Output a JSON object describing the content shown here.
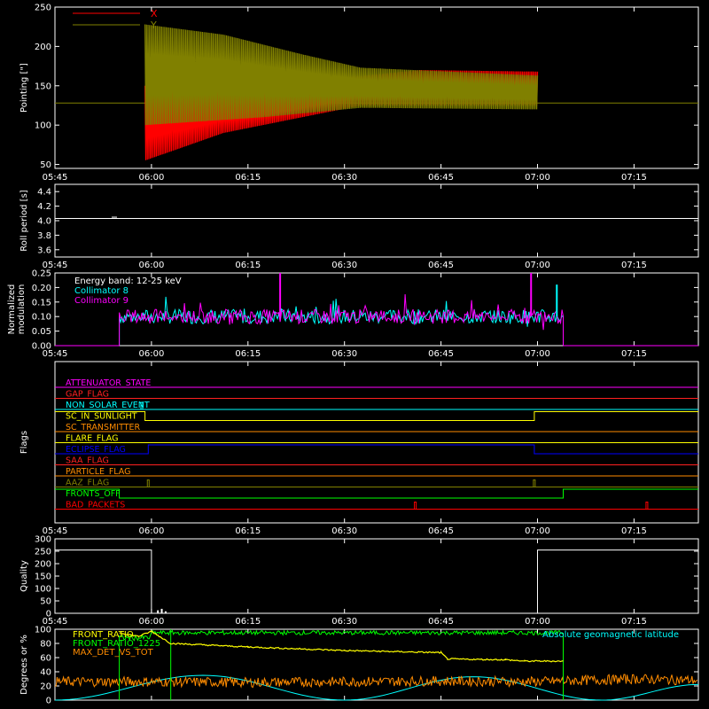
{
  "time_ticks": [
    "05:45",
    "06:00",
    "06:15",
    "06:30",
    "06:45",
    "07:00",
    "07:15"
  ],
  "colors": {
    "background": "#000000",
    "axes": "#ffffff",
    "x_pointing": "#ff0000",
    "y_pointing": "#808000",
    "collimator8": "#00ffff",
    "collimator9": "#ff00ff",
    "front_ratio": "#ffff00",
    "front_ratio_1225": "#00ff00",
    "max_det_vs_tot": "#ff8c00",
    "geomag_lat": "#00ffff"
  },
  "chart_data": [
    {
      "id": "pointing",
      "type": "line",
      "xlabel": "",
      "ylabel": "Pointing [\"]",
      "x_range": [
        "05:45",
        "07:25"
      ],
      "ylim": [
        45,
        250
      ],
      "yticks": [
        "50",
        "100",
        "150",
        "200",
        "250"
      ],
      "reference_level": 128,
      "legend": {
        "placement": "top-left",
        "entries": [
          {
            "label": "X",
            "color": "#ff0000"
          },
          {
            "label": "Y",
            "color": "#808000"
          }
        ]
      },
      "series": [
        {
          "name": "X",
          "start": "05:59",
          "end": "07:00",
          "envelope_lo": [
            [
              0,
              55
            ],
            [
              0.2,
              90
            ],
            [
              0.4,
              110
            ],
            [
              0.55,
              125
            ],
            [
              1,
              125
            ]
          ],
          "envelope_hi": [
            [
              0,
              150
            ],
            [
              0.3,
              140
            ],
            [
              0.5,
              160
            ],
            [
              0.7,
              170
            ],
            [
              1,
              168
            ]
          ]
        },
        {
          "name": "Y",
          "start": "05:59",
          "end": "07:00",
          "envelope_lo": [
            [
              0,
              100
            ],
            [
              0.3,
              110
            ],
            [
              0.55,
              122
            ],
            [
              1,
              120
            ]
          ],
          "envelope_hi": [
            [
              0,
              228
            ],
            [
              0.2,
              215
            ],
            [
              0.4,
              190
            ],
            [
              0.55,
              173
            ],
            [
              1,
              163
            ]
          ]
        }
      ]
    },
    {
      "id": "roll",
      "type": "line",
      "ylabel": "Roll period [s]",
      "ylim": [
        3.5,
        4.5
      ],
      "yticks": [
        "3.6",
        "3.8",
        "4.0",
        "4.2",
        "4.4"
      ],
      "series": [
        {
          "name": "",
          "values": [
            [
              0,
              4.03
            ],
            [
              100,
              4.03
            ]
          ]
        }
      ]
    },
    {
      "id": "modulation",
      "type": "line",
      "ylabel": "Normalized modulation",
      "ylim": [
        0,
        0.25
      ],
      "yticks": [
        "0.00",
        "0.05",
        "0.10",
        "0.15",
        "0.20",
        "0.25"
      ],
      "legend": {
        "placement": "top-left",
        "entries": [
          {
            "label": "Energy band: 12-25 keV",
            "color": "#ffffff"
          },
          {
            "label": "Collimator 8",
            "color": "#00ffff"
          },
          {
            "label": "Collimator 9",
            "color": "#ff00ff"
          }
        ]
      },
      "active_range": [
        "05:55",
        "07:04"
      ],
      "typical_value": 0.1,
      "spikes": [
        {
          "time": "06:20",
          "value": 0.25
        },
        {
          "time": "06:59",
          "value": 0.25
        },
        {
          "time": "07:03",
          "value": 0.21
        }
      ]
    },
    {
      "id": "flags",
      "type": "line",
      "ylabel": "Flags",
      "flags": [
        {
          "name": "ATTENUATOR_STATE",
          "color": "#ff00ff",
          "steps": []
        },
        {
          "name": "GAP_FLAG",
          "color": "#ff2020",
          "steps": []
        },
        {
          "name": "NON_SOLAR_EVENT",
          "color": "#00ffff",
          "pulses": [
            "05:58.5"
          ]
        },
        {
          "name": "SC_IN_SUNLIGHT",
          "color": "#ffff00",
          "high": [
            [
              "05:45",
              "05:59"
            ],
            [
              "06:59.5",
              "07:25"
            ]
          ]
        },
        {
          "name": "SC_TRANSMITTER",
          "color": "#ff8c00",
          "steps": []
        },
        {
          "name": "FLARE_FLAG",
          "color": "#ffff00",
          "steps": []
        },
        {
          "name": "ECLIPSE_FLAG",
          "color": "#0000ff",
          "high": [
            [
              "05:59.5",
              "06:59.5"
            ]
          ]
        },
        {
          "name": "SAA_FLAG",
          "color": "#ff2020",
          "steps": []
        },
        {
          "name": "PARTICLE_FLAG",
          "color": "#ff8c00",
          "steps": []
        },
        {
          "name": "AAZ_FLAG",
          "color": "#808000",
          "pulses": [
            "05:59.5",
            "06:59.5"
          ]
        },
        {
          "name": "FRONTS_OFF",
          "color": "#00ff00",
          "high": [
            [
              "05:45",
              "05:55"
            ],
            [
              "07:04",
              "07:25"
            ]
          ]
        },
        {
          "name": "BAD_PACKETS",
          "color": "#ff0000",
          "pulses": [
            "06:41",
            "07:17"
          ]
        }
      ]
    },
    {
      "id": "quality",
      "type": "line",
      "ylabel": "Quality",
      "ylim": [
        0,
        300
      ],
      "yticks": [
        "0",
        "50",
        "100",
        "150",
        "200",
        "250",
        "300"
      ],
      "series": [
        {
          "name": "",
          "values": [
            [
              "05:45",
              255
            ],
            [
              "06:00",
              255
            ],
            [
              "06:00",
              0
            ],
            [
              "07:00",
              0
            ],
            [
              "07:00",
              255
            ],
            [
              "07:25",
              255
            ]
          ]
        }
      ]
    },
    {
      "id": "latitude",
      "type": "line",
      "ylabel": "Degrees or %",
      "ylim": [
        0,
        100
      ],
      "yticks": [
        "0",
        "20",
        "40",
        "60",
        "80",
        "100"
      ],
      "legend": {
        "placement": "top-left",
        "entries": [
          {
            "label": "FRONT_RATIO",
            "color": "#ffff00"
          },
          {
            "label": "FRONT_RATIO_1225",
            "color": "#00ff00"
          },
          {
            "label": "MAX_DET_VS_TOT",
            "color": "#ff8c00"
          }
        ]
      },
      "annotation": {
        "text": "Absolute geomagnetic latitude",
        "color": "#00ffff"
      },
      "series": [
        {
          "name": "FRONT_RATIO",
          "values": [
            [
              "05:55",
              95
            ],
            [
              "05:58",
              90
            ],
            [
              "06:00",
              97
            ],
            [
              "06:03",
              80
            ],
            [
              "06:15",
              75
            ],
            [
              "06:30",
              70
            ],
            [
              "06:45",
              67
            ],
            [
              "06:46",
              58
            ],
            [
              "06:55",
              57
            ],
            [
              "06:58",
              55
            ],
            [
              "07:04",
              55
            ]
          ]
        },
        {
          "name": "FRONT_RATIO_1225",
          "values": [
            [
              "05:55",
              88
            ],
            [
              "06:00",
              95
            ],
            [
              "06:30",
              95
            ],
            [
              "07:04",
              96
            ]
          ]
        },
        {
          "name": "MAX_DET_VS_TOT",
          "values": [
            [
              "05:45",
              26
            ],
            [
              "06:00",
              26
            ],
            [
              "06:15",
              25
            ],
            [
              "06:30",
              26
            ],
            [
              "06:45",
              27
            ],
            [
              "07:00",
              26
            ],
            [
              "07:15",
              30
            ],
            [
              "07:25",
              28
            ]
          ]
        },
        {
          "name": "Absolute geomagnetic latitude",
          "values": [
            [
              "05:45",
              0
            ],
            [
              "06:08",
              35
            ],
            [
              "06:30",
              0
            ],
            [
              "06:50",
              33
            ],
            [
              "07:10",
              0
            ],
            [
              "07:25",
              22
            ]
          ]
        }
      ]
    }
  ]
}
